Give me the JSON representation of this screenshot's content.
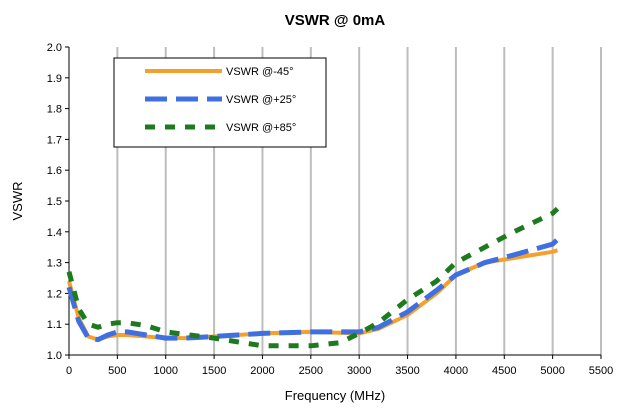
{
  "chart_data": {
    "type": "line",
    "title": "VSWR @ 0mA",
    "xlabel": "Frequency (MHz)",
    "ylabel": "VSWR",
    "xlim": [
      0,
      5500
    ],
    "ylim": [
      1.0,
      2.0
    ],
    "xticks": [
      "0",
      "500",
      "1000",
      "1500",
      "2000",
      "2500",
      "3000",
      "3500",
      "4000",
      "4500",
      "5000",
      "5500"
    ],
    "yticks": [
      "1.0",
      "1.1",
      "1.2",
      "1.3",
      "1.4",
      "1.5",
      "1.6",
      "1.7",
      "1.8",
      "1.9",
      "2.0"
    ],
    "grid": "vertical",
    "legend_position": "top-left",
    "series": [
      {
        "name": "VSWR @-45°",
        "color": "#f5a02c",
        "style": "solid",
        "points": [
          [
            0,
            1.24
          ],
          [
            100,
            1.12
          ],
          [
            200,
            1.06
          ],
          [
            300,
            1.05
          ],
          [
            400,
            1.06
          ],
          [
            500,
            1.065
          ],
          [
            600,
            1.065
          ],
          [
            800,
            1.06
          ],
          [
            1000,
            1.055
          ],
          [
            1200,
            1.055
          ],
          [
            1500,
            1.06
          ],
          [
            2000,
            1.07
          ],
          [
            2500,
            1.075
          ],
          [
            3000,
            1.07
          ],
          [
            3200,
            1.085
          ],
          [
            3500,
            1.13
          ],
          [
            3800,
            1.2
          ],
          [
            4000,
            1.26
          ],
          [
            4300,
            1.3
          ],
          [
            4600,
            1.315
          ],
          [
            5000,
            1.335
          ],
          [
            5050,
            1.34
          ]
        ]
      },
      {
        "name": "VSWR @+25°",
        "color": "#3f6fe0",
        "style": "dashed",
        "points": [
          [
            0,
            1.22
          ],
          [
            100,
            1.11
          ],
          [
            200,
            1.055
          ],
          [
            300,
            1.05
          ],
          [
            400,
            1.065
          ],
          [
            500,
            1.075
          ],
          [
            600,
            1.075
          ],
          [
            800,
            1.065
          ],
          [
            1000,
            1.055
          ],
          [
            1200,
            1.055
          ],
          [
            1500,
            1.06
          ],
          [
            2000,
            1.07
          ],
          [
            2500,
            1.075
          ],
          [
            3000,
            1.075
          ],
          [
            3200,
            1.09
          ],
          [
            3500,
            1.14
          ],
          [
            3800,
            1.21
          ],
          [
            4000,
            1.26
          ],
          [
            4300,
            1.3
          ],
          [
            4600,
            1.325
          ],
          [
            5000,
            1.36
          ],
          [
            5050,
            1.375
          ]
        ]
      },
      {
        "name": "VSWR @+85°",
        "color": "#1e7a1e",
        "style": "dashed",
        "points": [
          [
            0,
            1.27
          ],
          [
            100,
            1.15
          ],
          [
            200,
            1.1
          ],
          [
            300,
            1.09
          ],
          [
            400,
            1.1
          ],
          [
            500,
            1.105
          ],
          [
            600,
            1.105
          ],
          [
            800,
            1.095
          ],
          [
            1000,
            1.075
          ],
          [
            1500,
            1.055
          ],
          [
            2000,
            1.03
          ],
          [
            2500,
            1.03
          ],
          [
            2800,
            1.04
          ],
          [
            3000,
            1.07
          ],
          [
            3200,
            1.105
          ],
          [
            3500,
            1.18
          ],
          [
            3800,
            1.24
          ],
          [
            4000,
            1.3
          ],
          [
            4300,
            1.35
          ],
          [
            4600,
            1.4
          ],
          [
            5000,
            1.46
          ],
          [
            5050,
            1.475
          ]
        ]
      }
    ]
  }
}
